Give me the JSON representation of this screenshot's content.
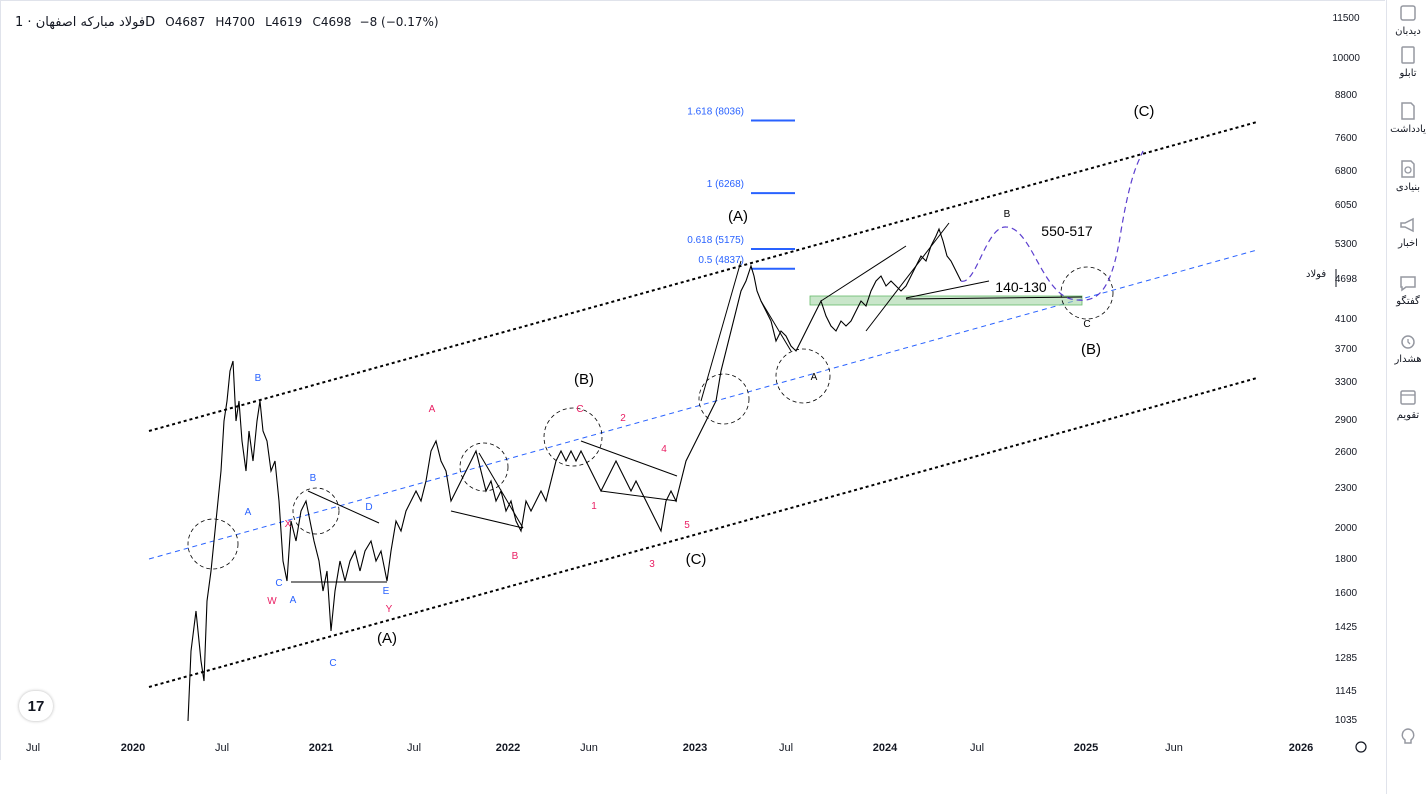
{
  "header": {
    "symbol": "فولاد مبارکه اصفهان",
    "interval": "1D",
    "open": "O4687",
    "high": "H4700",
    "low": "L4619",
    "close": "C4698",
    "change": "−8 (−0.17%)"
  },
  "price_axis": [
    "11500",
    "10000",
    "8800",
    "7600",
    "6800",
    "6050",
    "5300",
    "4698",
    "4100",
    "3700",
    "3300",
    "2900",
    "2600",
    "2300",
    "2000",
    "1800",
    "1600",
    "1425",
    "1285",
    "1145",
    "1035"
  ],
  "time_axis": [
    "Jul",
    "2020",
    "Jul",
    "2021",
    "Jul",
    "2022",
    "Jun",
    "2023",
    "Jul",
    "2024",
    "Jul",
    "2025",
    "Jun",
    "2026"
  ],
  "price_tag": {
    "symbol": "فولاد",
    "value": "4698"
  },
  "fib_levels": [
    {
      "label": "1.618 (8036)",
      "price": 8036
    },
    {
      "label": "1 (6268)",
      "price": 6268
    },
    {
      "label": "0.618 (5175)",
      "price": 5175
    },
    {
      "label": "0.5 (4837)",
      "price": 4837
    }
  ],
  "wave_labels": {
    "black": [
      "(A)",
      "(B)",
      "(C)",
      "(A)",
      "(B)",
      "(C)"
    ],
    "blue": [
      "B",
      "A",
      "C",
      "A",
      "B",
      "D",
      "E",
      "C"
    ],
    "pink": [
      "X",
      "W",
      "Y",
      "A",
      "B",
      "C",
      "1",
      "2",
      "3",
      "4",
      "5"
    ],
    "future": [
      "B",
      "C",
      "A"
    ]
  },
  "annotations": [
    "550-517",
    "140-130"
  ],
  "right_rail": [
    {
      "name": "watchlist",
      "label": "دیدبان"
    },
    {
      "name": "board",
      "label": "تابلو"
    },
    {
      "name": "notes",
      "label": "یادداشت"
    },
    {
      "name": "fundamental",
      "label": "بنیادی"
    },
    {
      "name": "news",
      "label": "اخبار"
    },
    {
      "name": "chat",
      "label": "گفتگو"
    },
    {
      "name": "alert",
      "label": "هشدار"
    },
    {
      "name": "calendar",
      "label": "تقویم"
    }
  ],
  "logo_text": "17",
  "colors": {
    "channel": "#000000",
    "midline": "#2962ff",
    "fib": "#2962ff",
    "wave_pink": "#e91e63",
    "zone": "#a5d6a7",
    "projection": "#5c3fcf"
  }
}
